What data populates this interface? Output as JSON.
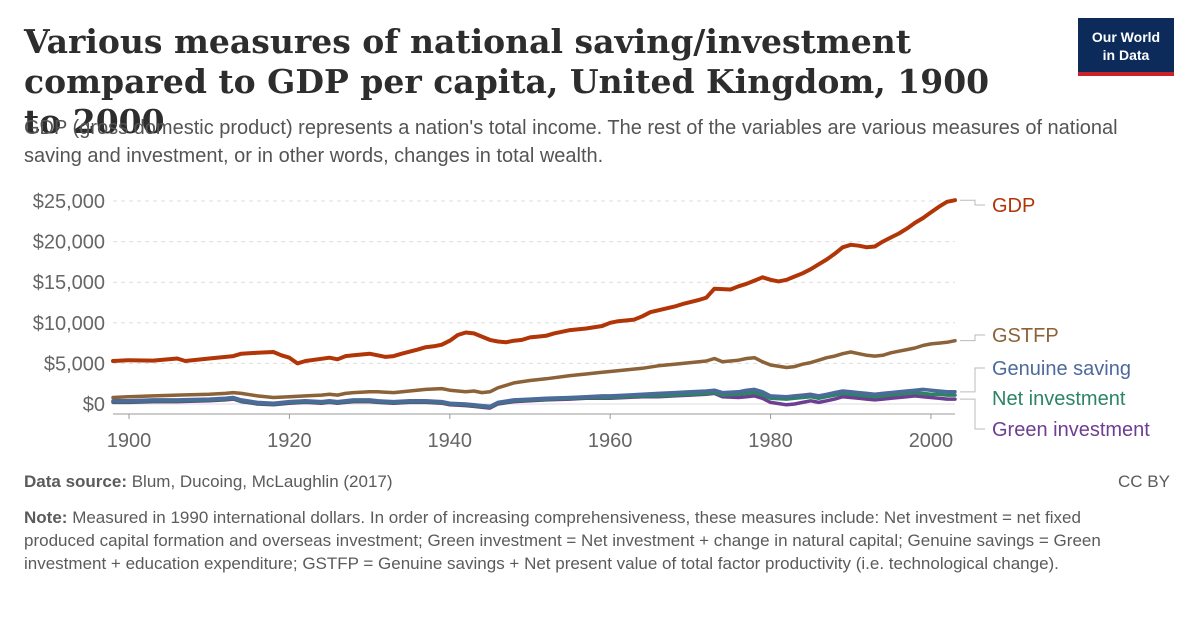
{
  "header": {
    "title": "Various measures of national saving/investment compared to GDP per capita, United Kingdom, 1900 to 2000",
    "subtitle": "GDP (gross domestic product) represents a nation's total income. The rest of the variables are various measures of national saving and investment, or in other words, changes in total wealth."
  },
  "logo": {
    "line1": "Our World",
    "line2": "in Data",
    "bg_color": "#0c2b5b",
    "accent_color": "#c8222b"
  },
  "footer": {
    "source_label": "Data source:",
    "source_text": "Blum, Ducoing, McLaughlin (2017)",
    "license": "CC BY",
    "note_label": "Note:",
    "note_text": "Measured in 1990 international dollars. In order of increasing comprehensiveness, these measures include: Net investment = net fixed produced capital formation and overseas investment; Green investment = Net investment + change in natural capital; Genuine savings = Green investment + education expenditure; GSTFP = Genuine savings + Net present value of total factor productivity (i.e. technological change)."
  },
  "chart_data": {
    "type": "line",
    "xlim": [
      1898,
      2003
    ],
    "ylim": [
      -1000,
      25500
    ],
    "x_ticks": [
      1900,
      1920,
      1940,
      1960,
      1980,
      2000
    ],
    "x_tick_labels": [
      "1900",
      "1920",
      "1940",
      "1960",
      "1980",
      "2000"
    ],
    "y_ticks": [
      0,
      5000,
      10000,
      15000,
      20000,
      25000
    ],
    "y_tick_labels": [
      "$0",
      "$5,000",
      "$10,000",
      "$15,000",
      "$20,000",
      "$25,000"
    ],
    "grid": "horizontal dashed",
    "legend": "right, end-of-line labels",
    "series": [
      {
        "name": "GDP",
        "color": "#b13507",
        "x": [
          1898,
          1900,
          1903,
          1906,
          1907,
          1910,
          1913,
          1914,
          1916,
          1918,
          1919,
          1920,
          1921,
          1922,
          1925,
          1926,
          1927,
          1928,
          1930,
          1931,
          1932,
          1933,
          1934,
          1936,
          1937,
          1938,
          1939,
          1940,
          1941,
          1942,
          1943,
          1944,
          1945,
          1946,
          1947,
          1948,
          1949,
          1950,
          1951,
          1952,
          1953,
          1955,
          1957,
          1959,
          1960,
          1961,
          1963,
          1964,
          1965,
          1968,
          1969,
          1971,
          1972,
          1973,
          1975,
          1976,
          1977,
          1978,
          1979,
          1980,
          1981,
          1982,
          1983,
          1984,
          1985,
          1986,
          1987,
          1988,
          1989,
          1990,
          1991,
          1992,
          1993,
          1994,
          1995,
          1996,
          1997,
          1998,
          1999,
          2000,
          2001,
          2002,
          2003
        ],
        "y": [
          5300,
          5400,
          5350,
          5600,
          5300,
          5600,
          5900,
          6200,
          6300,
          6400,
          6000,
          5700,
          5000,
          5300,
          5700,
          5500,
          5900,
          6000,
          6200,
          6000,
          5800,
          5900,
          6200,
          6700,
          7000,
          7100,
          7300,
          7800,
          8500,
          8800,
          8700,
          8300,
          7900,
          7700,
          7600,
          7800,
          7900,
          8200,
          8300,
          8400,
          8700,
          9100,
          9300,
          9600,
          10000,
          10200,
          10400,
          10800,
          11300,
          12000,
          12300,
          12800,
          13100,
          14200,
          14100,
          14500,
          14800,
          15200,
          15600,
          15300,
          15100,
          15300,
          15700,
          16100,
          16600,
          17200,
          17800,
          18500,
          19300,
          19600,
          19500,
          19300,
          19400,
          20000,
          20500,
          21000,
          21600,
          22300,
          22900,
          23600,
          24300,
          24900,
          25100
        ]
      },
      {
        "name": "GSTFP",
        "color": "#8c6239",
        "x": [
          1898,
          1900,
          1903,
          1906,
          1910,
          1912,
          1913,
          1914,
          1916,
          1918,
          1920,
          1922,
          1924,
          1925,
          1926,
          1927,
          1928,
          1930,
          1931,
          1933,
          1935,
          1937,
          1939,
          1940,
          1942,
          1943,
          1944,
          1945,
          1946,
          1948,
          1950,
          1952,
          1955,
          1957,
          1959,
          1960,
          1962,
          1964,
          1966,
          1968,
          1970,
          1972,
          1973,
          1974,
          1976,
          1977,
          1978,
          1979,
          1980,
          1982,
          1983,
          1984,
          1985,
          1986,
          1987,
          1988,
          1989,
          1990,
          1991,
          1992,
          1993,
          1994,
          1995,
          1996,
          1997,
          1998,
          1999,
          2000,
          2001,
          2002,
          2003
        ],
        "y": [
          800,
          900,
          1000,
          1100,
          1200,
          1300,
          1400,
          1300,
          1000,
          800,
          900,
          1000,
          1100,
          1200,
          1100,
          1300,
          1400,
          1500,
          1500,
          1400,
          1600,
          1800,
          1900,
          1700,
          1500,
          1600,
          1400,
          1500,
          2000,
          2600,
          2900,
          3100,
          3500,
          3700,
          3900,
          4000,
          4200,
          4400,
          4700,
          4900,
          5100,
          5300,
          5600,
          5200,
          5400,
          5600,
          5700,
          5200,
          4800,
          4500,
          4600,
          4900,
          5100,
          5400,
          5700,
          5900,
          6200,
          6400,
          6200,
          6000,
          5900,
          6000,
          6300,
          6500,
          6700,
          6900,
          7200,
          7400,
          7500,
          7600,
          7800
        ]
      },
      {
        "name": "Genuine saving",
        "color": "#4c6a9c",
        "x": [
          1898,
          1900,
          1903,
          1906,
          1910,
          1912,
          1913,
          1914,
          1916,
          1918,
          1920,
          1922,
          1924,
          1925,
          1926,
          1927,
          1928,
          1930,
          1931,
          1933,
          1935,
          1937,
          1939,
          1940,
          1942,
          1943,
          1944,
          1945,
          1946,
          1948,
          1950,
          1952,
          1955,
          1957,
          1959,
          1960,
          1962,
          1964,
          1966,
          1968,
          1970,
          1972,
          1973,
          1974,
          1976,
          1977,
          1978,
          1979,
          1980,
          1982,
          1983,
          1984,
          1985,
          1986,
          1987,
          1988,
          1989,
          1990,
          1991,
          1992,
          1993,
          1994,
          1995,
          1996,
          1997,
          1998,
          1999,
          2000,
          2001,
          2002,
          2003
        ],
        "y": [
          400,
          400,
          500,
          500,
          600,
          700,
          800,
          500,
          200,
          100,
          300,
          400,
          300,
          400,
          300,
          400,
          500,
          500,
          400,
          300,
          400,
          400,
          300,
          100,
          0,
          -100,
          -200,
          -300,
          200,
          500,
          600,
          700,
          800,
          900,
          1000,
          1000,
          1100,
          1200,
          1300,
          1400,
          1500,
          1600,
          1700,
          1400,
          1500,
          1700,
          1800,
          1500,
          1000,
          900,
          1000,
          1100,
          1200,
          1000,
          1200,
          1400,
          1600,
          1500,
          1400,
          1300,
          1200,
          1300,
          1400,
          1500,
          1600,
          1700,
          1800,
          1700,
          1600,
          1500,
          1500
        ]
      },
      {
        "name": "Net investment",
        "color": "#2c8465",
        "x": [
          1898,
          1900,
          1903,
          1906,
          1910,
          1912,
          1913,
          1914,
          1916,
          1918,
          1920,
          1922,
          1924,
          1925,
          1926,
          1927,
          1928,
          1930,
          1931,
          1933,
          1935,
          1937,
          1939,
          1940,
          1942,
          1943,
          1944,
          1945,
          1946,
          1948,
          1950,
          1952,
          1955,
          1957,
          1959,
          1960,
          1962,
          1964,
          1966,
          1968,
          1970,
          1972,
          1973,
          1974,
          1976,
          1977,
          1978,
          1979,
          1980,
          1982,
          1983,
          1984,
          1985,
          1986,
          1987,
          1988,
          1989,
          1990,
          1991,
          1992,
          1993,
          1994,
          1995,
          1996,
          1997,
          1998,
          1999,
          2000,
          2001,
          2002,
          2003
        ],
        "y": [
          300,
          300,
          400,
          400,
          500,
          600,
          700,
          400,
          100,
          0,
          200,
          300,
          200,
          300,
          200,
          300,
          400,
          400,
          300,
          200,
          300,
          300,
          200,
          0,
          -100,
          -200,
          -300,
          -400,
          100,
          400,
          500,
          600,
          700,
          800,
          800,
          800,
          900,
          1000,
          1000,
          1100,
          1200,
          1300,
          1400,
          1100,
          1200,
          1300,
          1400,
          1100,
          700,
          600,
          700,
          800,
          900,
          700,
          900,
          1100,
          1300,
          1200,
          1100,
          1000,
          900,
          1000,
          1100,
          1200,
          1300,
          1400,
          1300,
          1200,
          1200,
          1100,
          1100
        ]
      },
      {
        "name": "Green investment",
        "color": "#6d3e91",
        "x": [
          1898,
          1900,
          1903,
          1906,
          1910,
          1912,
          1913,
          1914,
          1916,
          1918,
          1920,
          1922,
          1924,
          1925,
          1926,
          1927,
          1928,
          1930,
          1931,
          1933,
          1935,
          1937,
          1939,
          1940,
          1942,
          1943,
          1944,
          1945,
          1946,
          1948,
          1950,
          1952,
          1955,
          1957,
          1959,
          1960,
          1962,
          1964,
          1966,
          1968,
          1970,
          1972,
          1973,
          1974,
          1976,
          1977,
          1978,
          1979,
          1980,
          1982,
          1983,
          1984,
          1985,
          1986,
          1987,
          1988,
          1989,
          1990,
          1991,
          1992,
          1993,
          1994,
          1995,
          1996,
          1997,
          1998,
          1999,
          2000,
          2001,
          2002,
          2003
        ],
        "y": [
          200,
          200,
          300,
          300,
          400,
          500,
          600,
          300,
          0,
          -100,
          100,
          200,
          100,
          200,
          100,
          200,
          300,
          300,
          200,
          100,
          200,
          200,
          100,
          -100,
          -200,
          -300,
          -400,
          -500,
          0,
          300,
          400,
          500,
          600,
          700,
          700,
          700,
          800,
          900,
          900,
          1000,
          1100,
          1200,
          1300,
          900,
          800,
          900,
          1000,
          700,
          200,
          -100,
          0,
          200,
          400,
          200,
          400,
          600,
          900,
          800,
          700,
          600,
          500,
          600,
          700,
          800,
          900,
          1000,
          900,
          800,
          700,
          600,
          600
        ]
      }
    ]
  }
}
